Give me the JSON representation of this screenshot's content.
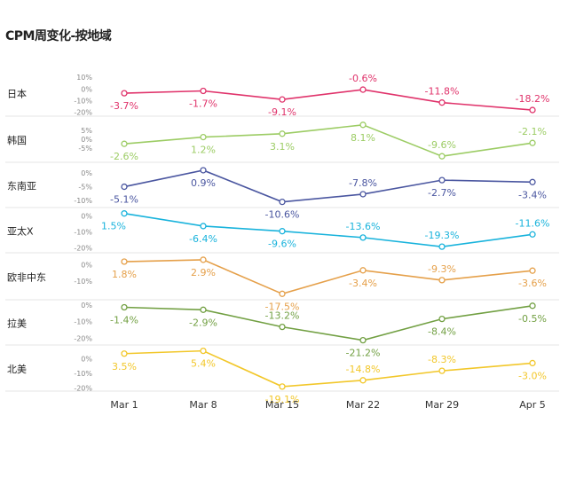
{
  "title": "CPM周变化-按地域",
  "chart_data": {
    "type": "line",
    "title": "CPM周变化-按地域",
    "categories": [
      "Mar 1",
      "Mar 8",
      "Mar 15",
      "Mar 22",
      "Mar 29",
      "Apr 5"
    ],
    "panels": [
      {
        "name": "日本",
        "color": "#e0336b",
        "values": [
          -3.7,
          -1.7,
          -9.1,
          -0.6,
          -11.8,
          -18.2
        ],
        "ticks": [
          10,
          0,
          -10,
          -20
        ],
        "tick_labels": [
          "10%",
          "0%",
          "-10%",
          "-20%"
        ],
        "ylim": [
          -22,
          14
        ]
      },
      {
        "name": "韩国",
        "color": "#9ccc64",
        "values": [
          -2.6,
          1.2,
          3.1,
          8.1,
          -9.6,
          -2.1
        ],
        "ticks": [
          5,
          0,
          -5
        ],
        "tick_labels": [
          "5%",
          "0%",
          "-5%"
        ],
        "ylim": [
          -12,
          11
        ]
      },
      {
        "name": "东南亚",
        "color": "#4a56a0",
        "values": [
          -5.1,
          0.9,
          -10.6,
          -7.8,
          -2.7,
          -3.4
        ],
        "ticks": [
          0,
          -5,
          -10
        ],
        "tick_labels": [
          "0%",
          "-5%",
          "-10%"
        ],
        "ylim": [
          -12,
          2.5
        ]
      },
      {
        "name": "亚太X",
        "color": "#19b3dc",
        "values": [
          1.5,
          -6.4,
          -9.6,
          -13.6,
          -19.3,
          -11.6
        ],
        "ticks": [
          0,
          -10,
          -20
        ],
        "tick_labels": [
          "0%",
          "-10%",
          "-20%"
        ],
        "ylim": [
          -22,
          3
        ]
      },
      {
        "name": "欧非中东",
        "color": "#e5a04a",
        "values": [
          1.8,
          2.9,
          -17.5,
          -3.4,
          -9.3,
          -3.6
        ],
        "ticks": [
          0,
          -10
        ],
        "tick_labels": [
          "0%",
          "-10%"
        ],
        "ylim": [
          -20,
          5
        ]
      },
      {
        "name": "拉美",
        "color": "#72a043",
        "values": [
          -1.4,
          -2.9,
          -13.2,
          -21.2,
          -8.4,
          -0.5
        ],
        "ticks": [
          0,
          -10,
          -20
        ],
        "tick_labels": [
          "0%",
          "-10%",
          "-20%"
        ],
        "ylim": [
          -23,
          1
        ]
      },
      {
        "name": "北美",
        "color": "#f2c72a",
        "values": [
          3.5,
          5.4,
          -19.1,
          -14.8,
          -8.3,
          -3.0
        ],
        "ticks": [
          0,
          -10,
          -20
        ],
        "tick_labels": [
          "0%",
          "-10%",
          "-20%"
        ],
        "ylim": [
          -21,
          7
        ]
      }
    ],
    "value_labels": [
      [
        "-3.7%",
        "-1.7%",
        "-9.1%",
        "-0.6%",
        "-11.8%",
        "-18.2%"
      ],
      [
        "-2.6%",
        "1.2%",
        "3.1%",
        "8.1%",
        "-9.6%",
        "-2.1%"
      ],
      [
        "-5.1%",
        "0.9%",
        "-10.6%",
        "-7.8%",
        "-2.7%",
        "-3.4%"
      ],
      [
        "1.5%",
        "-6.4%",
        "-9.6%",
        "-13.6%",
        "-19.3%",
        "-11.6%"
      ],
      [
        "1.8%",
        "2.9%",
        "-17.5%",
        "-3.4%",
        "-9.3%",
        "-3.6%"
      ],
      [
        "-1.4%",
        "-2.9%",
        "-13.2%",
        "-21.2%",
        "-8.4%",
        "-0.5%"
      ],
      [
        "3.5%",
        "5.4%",
        "-19.1%",
        "-14.8%",
        "-8.3%",
        "-3.0%"
      ]
    ],
    "label_positions": [
      [
        "below",
        "below",
        "below",
        "above",
        "above",
        "above"
      ],
      [
        "below",
        "below",
        "below",
        "below",
        "above",
        "above"
      ],
      [
        "below",
        "below",
        "below",
        "above",
        "below",
        "below"
      ],
      [
        "below",
        "below",
        "below",
        "above",
        "above",
        "above"
      ],
      [
        "below",
        "below",
        "below",
        "below",
        "above",
        "below"
      ],
      [
        "below",
        "below",
        "above",
        "below",
        "below",
        "below"
      ],
      [
        "below",
        "below",
        "below",
        "above",
        "above",
        "below"
      ]
    ],
    "xlabel": "",
    "ylabel": "",
    "grid": false
  }
}
